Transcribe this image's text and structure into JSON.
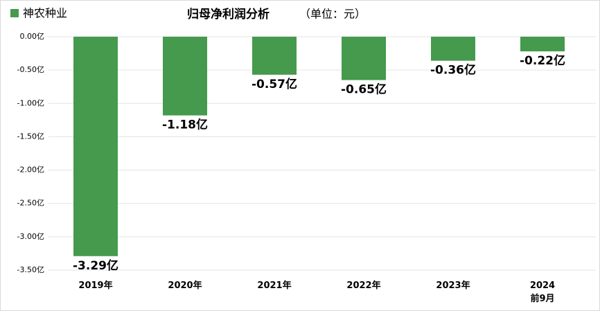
{
  "chart_data": {
    "type": "bar",
    "title": "归母净利润分析",
    "subtitle": "（单位：元）",
    "series": [
      {
        "name": "神农种业",
        "color": "#459a4d",
        "values": [
          -3.29,
          -1.18,
          -0.57,
          -0.65,
          -0.36,
          -0.22
        ],
        "value_labels": [
          "-3.29亿",
          "-1.18亿",
          "-0.57亿",
          "-0.65亿",
          "-0.36亿",
          "-0.22亿"
        ]
      }
    ],
    "categories": [
      "2019年",
      "2020年",
      "2021年",
      "2022年",
      "2023年",
      "2024\n前9月"
    ],
    "ylim": [
      -3.5,
      0
    ],
    "yticks": [
      {
        "value": 0,
        "label": "0.00亿"
      },
      {
        "value": -0.5,
        "label": "-0.50亿"
      },
      {
        "value": -1,
        "label": "-1.00亿"
      },
      {
        "value": -1.5,
        "label": "-1.50亿"
      },
      {
        "value": -2,
        "label": "-2.00亿"
      },
      {
        "value": -2.5,
        "label": "-2.50亿"
      },
      {
        "value": -3,
        "label": "-3.00亿"
      },
      {
        "value": -3.5,
        "label": "-3.50亿"
      }
    ],
    "grid": true,
    "legend": "top-left"
  }
}
